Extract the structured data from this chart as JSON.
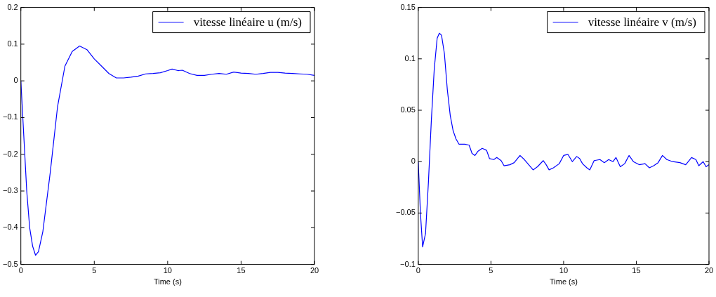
{
  "chart_data": [
    {
      "type": "line",
      "xlabel": "Time (s)",
      "xlim": [
        0,
        20
      ],
      "xticks": [
        0,
        5,
        10,
        15,
        20
      ],
      "ylim": [
        -0.5,
        0.2
      ],
      "yticks": [
        -0.5,
        -0.4,
        -0.3,
        -0.2,
        -0.1,
        0,
        0.1,
        0.2
      ],
      "grid": false,
      "legend": "top right",
      "marker": "none",
      "line_style": "solid",
      "series": [
        {
          "name": "vitesse linéaire u (m/s)",
          "color": "#0000ff",
          "x": [
            0,
            0.2,
            0.4,
            0.6,
            0.8,
            1.0,
            1.2,
            1.5,
            2.0,
            2.5,
            3.0,
            3.5,
            4.0,
            4.5,
            5.0,
            5.5,
            6.0,
            6.5,
            7,
            7.5,
            8,
            8.5,
            9,
            9.5,
            10,
            10.3,
            10.7,
            11,
            11.5,
            12,
            12.5,
            13,
            13.5,
            14,
            14.5,
            15,
            15.5,
            16,
            16.5,
            17,
            17.5,
            18,
            18.5,
            19,
            19.5,
            20
          ],
          "values": [
            0,
            -0.15,
            -0.3,
            -0.4,
            -0.45,
            -0.475,
            -0.465,
            -0.41,
            -0.25,
            -0.07,
            0.04,
            0.08,
            0.095,
            0.085,
            0.06,
            0.04,
            0.02,
            0.008,
            0.008,
            0.01,
            0.013,
            0.019,
            0.02,
            0.022,
            0.028,
            0.032,
            0.028,
            0.029,
            0.02,
            0.015,
            0.015,
            0.018,
            0.02,
            0.018,
            0.024,
            0.021,
            0.02,
            0.018,
            0.02,
            0.023,
            0.023,
            0.021,
            0.02,
            0.019,
            0.018,
            0.015
          ]
        }
      ]
    },
    {
      "type": "line",
      "xlabel": "Time (s)",
      "xlim": [
        0,
        20
      ],
      "xticks": [
        0,
        5,
        10,
        15,
        20
      ],
      "ylim": [
        -0.1,
        0.15
      ],
      "yticks": [
        -0.1,
        -0.05,
        0,
        0.05,
        0.1,
        0.15
      ],
      "grid": false,
      "legend": "top right",
      "marker": "none",
      "line_style": "solid",
      "series": [
        {
          "name": "vitesse linéaire v (m/s)",
          "color": "#0000ff",
          "x": [
            0,
            0.15,
            0.3,
            0.5,
            0.7,
            0.9,
            1.1,
            1.3,
            1.45,
            1.6,
            1.8,
            2.0,
            2.2,
            2.4,
            2.6,
            2.8,
            3.2,
            3.5,
            3.7,
            3.9,
            4.1,
            4.4,
            4.7,
            4.9,
            5.2,
            5.4,
            5.7,
            5.9,
            6.3,
            6.6,
            7.0,
            7.3,
            7.6,
            7.9,
            8.2,
            8.6,
            8.8,
            9.0,
            9.3,
            9.7,
            10,
            10.3,
            10.6,
            10.9,
            11.1,
            11.3,
            11.6,
            11.8,
            12.1,
            12.5,
            12.8,
            13.1,
            13.4,
            13.6,
            13.9,
            14.2,
            14.5,
            14.8,
            15.2,
            15.6,
            15.9,
            16.2,
            16.5,
            16.8,
            17.1,
            17.5,
            18,
            18.4,
            18.8,
            19.1,
            19.3,
            19.6,
            19.8,
            20
          ],
          "values": [
            0,
            -0.05,
            -0.083,
            -0.07,
            -0.02,
            0.04,
            0.09,
            0.12,
            0.125,
            0.123,
            0.105,
            0.07,
            0.045,
            0.03,
            0.022,
            0.017,
            0.017,
            0.016,
            0.008,
            0.006,
            0.01,
            0.013,
            0.011,
            0.003,
            0.002,
            0.004,
            0.001,
            -0.004,
            -0.003,
            -0.001,
            0.006,
            0.002,
            -0.003,
            -0.008,
            -0.005,
            0.001,
            -0.003,
            -0.008,
            -0.006,
            -0.002,
            0.006,
            0.007,
            0.0,
            0.005,
            0.003,
            -0.002,
            -0.006,
            -0.008,
            0.001,
            0.002,
            -0.001,
            0.002,
            0.0,
            0.004,
            -0.005,
            -0.002,
            0.006,
            0.0,
            -0.003,
            -0.002,
            -0.006,
            -0.004,
            -0.001,
            0.006,
            0.002,
            0.0,
            -0.001,
            -0.003,
            0.004,
            0.002,
            -0.004,
            0.0,
            -0.005,
            -0.003
          ]
        }
      ]
    }
  ]
}
